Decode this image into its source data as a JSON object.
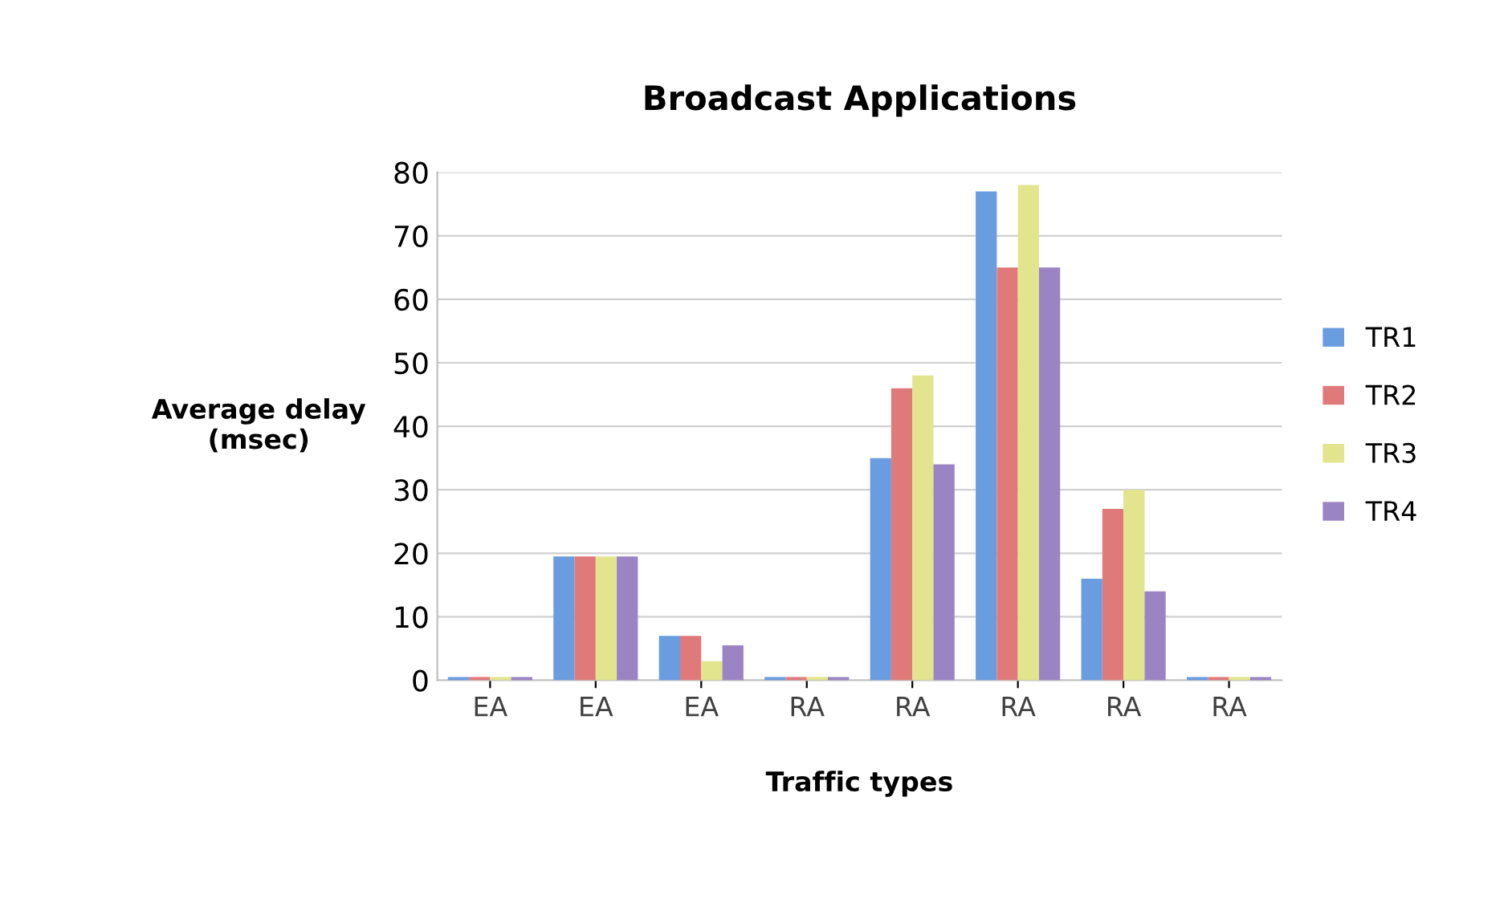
{
  "chart_data": {
    "type": "bar",
    "title": "Broadcast Applications",
    "xlabel": "Traffic types",
    "ylabel": "Average delay\n(msec)",
    "categories": [
      "EA",
      "EA",
      "EA",
      "RA",
      "RA",
      "RA",
      "RA",
      "RA"
    ],
    "series": [
      {
        "name": "TR1",
        "color": "#6a9ce0",
        "values": [
          0.5,
          19.5,
          7,
          0.5,
          35,
          77,
          16,
          0.5
        ]
      },
      {
        "name": "TR2",
        "color": "#e07a7a",
        "values": [
          0.5,
          19.5,
          7,
          0.5,
          46,
          65,
          27,
          0.5
        ]
      },
      {
        "name": "TR3",
        "color": "#e2e48e",
        "values": [
          0.5,
          19.5,
          3,
          0.5,
          48,
          78,
          30,
          0.5
        ]
      },
      {
        "name": "TR4",
        "color": "#9a84c4",
        "values": [
          0.5,
          19.5,
          5.5,
          0.5,
          34,
          65,
          14,
          0.5
        ]
      }
    ],
    "ylim": [
      0,
      80
    ],
    "yticks": [
      0,
      10,
      20,
      30,
      40,
      50,
      60,
      70,
      80
    ],
    "grid": "y",
    "legend": "right"
  }
}
